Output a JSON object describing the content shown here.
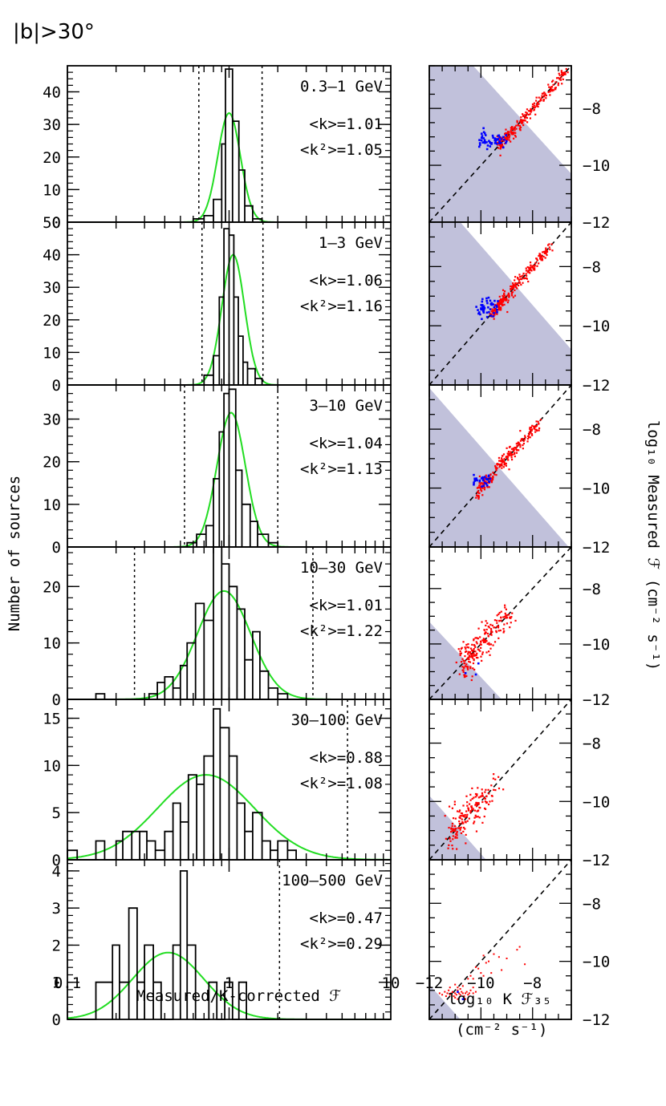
{
  "figure": {
    "title": "|b|>30°",
    "ylabel_left": "Number of sources",
    "xlabel_left": "Measured/K-corrected ℱ",
    "xlabel_right": "log₁₀ K ℱ₃₅",
    "xlabel_right_units": "(cm⁻² s⁻¹)",
    "ylabel_right": "log₁₀ Measured ℱ (cm⁻² s⁻¹)",
    "colors": {
      "fit": "#22dd22",
      "histogram": "#000000",
      "shade": "#c1c1db",
      "points_red": "#ff0000",
      "points_blue": "#0000ff"
    }
  },
  "chart_data": [
    {
      "type": "histogram",
      "panel": "hist-1",
      "band": "0.3–1 GeV",
      "stats": {
        "k": "<k>=1.01",
        "k2": "<k²>=1.05"
      },
      "xscale": "log",
      "xlim": [
        0.1,
        10
      ],
      "ylim": [
        0,
        48
      ],
      "yticks": [
        0,
        10,
        20,
        30,
        40
      ],
      "ytick_labels": [
        "0",
        "10",
        "20",
        "30",
        "40"
      ],
      "dashed_lines_x": [
        0.65,
        1.6
      ],
      "fit": {
        "amplitude": 33.5,
        "center": 1.0,
        "sigma_log10": 0.07
      },
      "bins": [
        [
          0.6,
          0.7,
          1
        ],
        [
          0.7,
          0.8,
          2
        ],
        [
          0.8,
          0.9,
          7
        ],
        [
          0.9,
          0.95,
          24
        ],
        [
          0.95,
          1.05,
          47
        ],
        [
          1.05,
          1.15,
          31
        ],
        [
          1.15,
          1.25,
          16
        ],
        [
          1.25,
          1.4,
          5
        ],
        [
          1.4,
          1.6,
          1
        ]
      ]
    },
    {
      "type": "histogram",
      "panel": "hist-2",
      "band": "1–3 GeV",
      "stats": {
        "k": "<k>=1.06",
        "k2": "<k²>=1.16"
      },
      "xscale": "log",
      "xlim": [
        0.1,
        10
      ],
      "ylim": [
        0,
        50
      ],
      "yticks": [
        0,
        10,
        20,
        30,
        40,
        50
      ],
      "ytick_labels": [
        "0",
        "10",
        "20",
        "30",
        "40",
        "50"
      ],
      "dashed_lines_x": [
        0.68,
        1.62
      ],
      "fit": {
        "amplitude": 40,
        "center": 1.06,
        "sigma_log10": 0.07
      },
      "bins": [
        [
          0.7,
          0.8,
          3
        ],
        [
          0.8,
          0.87,
          9
        ],
        [
          0.87,
          0.93,
          27
        ],
        [
          0.93,
          1.0,
          48
        ],
        [
          1.0,
          1.07,
          46
        ],
        [
          1.07,
          1.14,
          27
        ],
        [
          1.14,
          1.22,
          15
        ],
        [
          1.22,
          1.3,
          7
        ],
        [
          1.3,
          1.45,
          5
        ],
        [
          1.45,
          1.6,
          2
        ]
      ]
    },
    {
      "type": "histogram",
      "panel": "hist-3",
      "band": "3–10 GeV",
      "stats": {
        "k": "<k>=1.04",
        "k2": "<k²>=1.13"
      },
      "xscale": "log",
      "xlim": [
        0.1,
        10
      ],
      "ylim": [
        0,
        38
      ],
      "yticks": [
        0,
        10,
        20,
        30
      ],
      "ytick_labels": [
        "0",
        "10",
        "20",
        "30"
      ],
      "dashed_lines_x": [
        0.53,
        2.0
      ],
      "fit": {
        "amplitude": 31.5,
        "center": 1.03,
        "sigma_log10": 0.088
      },
      "bins": [
        [
          0.55,
          0.63,
          1
        ],
        [
          0.63,
          0.72,
          3
        ],
        [
          0.72,
          0.8,
          5
        ],
        [
          0.8,
          0.87,
          16
        ],
        [
          0.87,
          0.93,
          27
        ],
        [
          0.93,
          1.0,
          36
        ],
        [
          1.0,
          1.1,
          37
        ],
        [
          1.1,
          1.2,
          18
        ],
        [
          1.2,
          1.35,
          10
        ],
        [
          1.35,
          1.5,
          6
        ],
        [
          1.5,
          1.75,
          3
        ],
        [
          1.75,
          2.0,
          1
        ]
      ]
    },
    {
      "type": "histogram",
      "panel": "hist-4",
      "band": "10–30 GeV",
      "stats": {
        "k": "<k>=1.01",
        "k2": "<k²>=1.22"
      },
      "xscale": "log",
      "xlim": [
        0.1,
        10
      ],
      "ylim": [
        0,
        27
      ],
      "yticks": [
        0,
        10,
        20
      ],
      "ytick_labels": [
        "0",
        "10",
        "20"
      ],
      "dashed_lines_x": [
        0.26,
        3.3
      ],
      "fit": {
        "amplitude": 19.2,
        "center": 0.93,
        "sigma_log10": 0.165
      },
      "bins": [
        [
          0.15,
          0.17,
          1
        ],
        [
          0.32,
          0.36,
          1
        ],
        [
          0.36,
          0.4,
          3
        ],
        [
          0.4,
          0.45,
          4
        ],
        [
          0.45,
          0.5,
          2
        ],
        [
          0.5,
          0.55,
          6
        ],
        [
          0.55,
          0.62,
          10
        ],
        [
          0.62,
          0.7,
          17
        ],
        [
          0.7,
          0.8,
          14
        ],
        [
          0.8,
          0.9,
          27
        ],
        [
          0.9,
          1.0,
          24
        ],
        [
          1.0,
          1.12,
          20
        ],
        [
          1.12,
          1.25,
          16
        ],
        [
          1.25,
          1.4,
          7
        ],
        [
          1.4,
          1.55,
          12
        ],
        [
          1.55,
          1.75,
          5
        ],
        [
          1.75,
          2.0,
          2
        ],
        [
          2.0,
          2.3,
          1
        ]
      ]
    },
    {
      "type": "histogram",
      "panel": "hist-5",
      "band": "30–100 GeV",
      "stats": {
        "k": "<k>=0.88",
        "k2": "<k²>=1.08"
      },
      "xscale": "log",
      "xlim": [
        0.1,
        10
      ],
      "ylim": [
        0,
        17
      ],
      "yticks": [
        0,
        5,
        10,
        15
      ],
      "ytick_labels": [
        "0",
        "5",
        "10",
        "15"
      ],
      "dashed_lines_x": [
        5.4
      ],
      "fit": {
        "amplitude": 9,
        "center": 0.72,
        "sigma_log10": 0.3
      },
      "bins": [
        [
          0.1,
          0.115,
          1
        ],
        [
          0.15,
          0.17,
          2
        ],
        [
          0.2,
          0.22,
          2
        ],
        [
          0.22,
          0.25,
          3
        ],
        [
          0.25,
          0.28,
          3
        ],
        [
          0.28,
          0.31,
          3
        ],
        [
          0.31,
          0.35,
          2
        ],
        [
          0.35,
          0.4,
          1
        ],
        [
          0.4,
          0.45,
          3
        ],
        [
          0.45,
          0.5,
          6
        ],
        [
          0.5,
          0.56,
          4
        ],
        [
          0.56,
          0.63,
          9
        ],
        [
          0.63,
          0.7,
          8
        ],
        [
          0.7,
          0.8,
          11
        ],
        [
          0.8,
          0.88,
          16
        ],
        [
          0.88,
          1.0,
          14
        ],
        [
          1.0,
          1.12,
          11
        ],
        [
          1.12,
          1.25,
          6
        ],
        [
          1.25,
          1.4,
          3
        ],
        [
          1.4,
          1.6,
          5
        ],
        [
          1.6,
          1.8,
          2
        ],
        [
          1.8,
          2.0,
          1
        ],
        [
          2.0,
          2.3,
          2
        ],
        [
          2.3,
          2.6,
          1
        ]
      ]
    },
    {
      "type": "histogram",
      "panel": "hist-6",
      "band": "100–500 GeV",
      "stats": {
        "k": "<k>=0.47",
        "k2": "<k²>=0.29"
      },
      "xscale": "log",
      "xlim": [
        0.1,
        10
      ],
      "ylim": [
        0,
        4.3
      ],
      "yticks": [
        0,
        1,
        2,
        3,
        4
      ],
      "ytick_labels": [
        "0",
        "1",
        "2",
        "3",
        "4"
      ],
      "dashed_lines_x": [
        2.05
      ],
      "fit": {
        "amplitude": 1.8,
        "center": 0.42,
        "sigma_log10": 0.22
      },
      "bins": [
        [
          0.15,
          0.19,
          1
        ],
        [
          0.19,
          0.21,
          2
        ],
        [
          0.21,
          0.24,
          1
        ],
        [
          0.24,
          0.27,
          3
        ],
        [
          0.27,
          0.3,
          1
        ],
        [
          0.3,
          0.34,
          2
        ],
        [
          0.34,
          0.38,
          1
        ],
        [
          0.38,
          0.45,
          0
        ],
        [
          0.45,
          0.5,
          2
        ],
        [
          0.5,
          0.55,
          4
        ],
        [
          0.55,
          0.62,
          2
        ],
        [
          0.62,
          0.75,
          0
        ],
        [
          0.75,
          0.84,
          1
        ],
        [
          0.84,
          0.94,
          0
        ],
        [
          0.94,
          1.05,
          1
        ],
        [
          1.05,
          1.15,
          0
        ],
        [
          1.15,
          1.28,
          1
        ]
      ]
    },
    {
      "type": "scatter",
      "panel": "scatter-1",
      "xlim": [
        -12,
        -6.5
      ],
      "ylim": [
        -12,
        -6.5
      ],
      "xticks": [
        -12,
        -10,
        -8
      ],
      "yticks": [
        -12,
        -10,
        -8
      ],
      "ytick_labels": [
        "−12",
        "−10",
        "−8"
      ],
      "xtick_labels": [
        "−12",
        "−10",
        "−8"
      ],
      "shade": {
        "type": "below-anti-diagonal",
        "sum": -16.8
      },
      "red": {
        "x_range": [
          -9.3,
          -6.7
        ],
        "scatter": 0.08,
        "count": 230
      },
      "blue": {
        "x_range": [
          -10.1,
          -9.0
        ],
        "count": 55,
        "y_offset": 0.15,
        "y_spread": 0.25
      }
    },
    {
      "type": "scatter",
      "panel": "scatter-2",
      "xlim": [
        -12,
        -6.5
      ],
      "ylim": [
        -12,
        -6.5
      ],
      "xticks": [
        -12,
        -10,
        -8
      ],
      "yticks": [
        -12,
        -10,
        -8
      ],
      "ytick_labels": [
        "−12",
        "−10",
        "−8"
      ],
      "xtick_labels": [
        "−12",
        "−10",
        "−8"
      ],
      "shade": {
        "type": "below-anti-diagonal",
        "sum": -17.3
      },
      "red": {
        "x_range": [
          -9.6,
          -7.3
        ],
        "scatter": 0.08,
        "count": 240
      },
      "blue": {
        "x_range": [
          -10.2,
          -9.3
        ],
        "count": 45,
        "y_offset": 0.15,
        "y_spread": 0.2
      }
    },
    {
      "type": "scatter",
      "panel": "scatter-3",
      "xlim": [
        -12,
        -6.5
      ],
      "ylim": [
        -12,
        -6.5
      ],
      "xticks": [
        -12,
        -10,
        -8
      ],
      "yticks": [
        -12,
        -10,
        -8
      ],
      "ytick_labels": [
        "−12",
        "−10",
        "−8"
      ],
      "xtick_labels": [
        "−12",
        "−10",
        "−8"
      ],
      "shade": {
        "type": "below-anti-diagonal",
        "sum": -18.6
      },
      "red": {
        "x_range": [
          -10.1,
          -7.7
        ],
        "scatter": 0.1,
        "count": 220
      },
      "blue": {
        "x_range": [
          -10.3,
          -9.6
        ],
        "count": 30,
        "y_offset": 0.05,
        "y_spread": 0.15
      }
    },
    {
      "type": "scatter",
      "panel": "scatter-4",
      "xlim": [
        -12,
        -6.5
      ],
      "ylim": [
        -12,
        -6.5
      ],
      "xticks": [
        -12,
        -10,
        -8
      ],
      "yticks": [
        -12,
        -10,
        -8
      ],
      "ytick_labels": [
        "−12",
        "−10",
        "−8"
      ],
      "xtick_labels": [
        "−12",
        "−10",
        "−8"
      ],
      "shade": {
        "type": "below-anti-diagonal",
        "sum": -21.2
      },
      "red": {
        "x_range": [
          -10.7,
          -8.9
        ],
        "scatter": 0.25,
        "count": 200
      },
      "blue": {
        "points": [
          [
            -10.6,
            -11.05
          ],
          [
            -10.2,
            -11.1
          ],
          [
            -10.1,
            -10.7
          ]
        ]
      }
    },
    {
      "type": "scatter",
      "panel": "scatter-5",
      "xlim": [
        -12,
        -6.5
      ],
      "ylim": [
        -12,
        -6.5
      ],
      "xticks": [
        -12,
        -10,
        -8
      ],
      "yticks": [
        -12,
        -10,
        -8
      ],
      "ytick_labels": [
        "−12",
        "−10",
        "−8"
      ],
      "xtick_labels": [
        "−12",
        "−10",
        "−8"
      ],
      "shade": {
        "type": "below-anti-diagonal",
        "sum": -21.8
      },
      "red": {
        "x_range": [
          -11.2,
          -9.5
        ],
        "scatter": 0.25,
        "count": 170
      },
      "blue": {
        "points": []
      }
    },
    {
      "type": "scatter",
      "panel": "scatter-6",
      "xlim": [
        -12,
        -6.5
      ],
      "ylim": [
        -12,
        -6.5
      ],
      "xticks": [
        -12,
        -10,
        -8
      ],
      "yticks": [
        -12,
        -10,
        -8
      ],
      "ytick_labels": [
        "−12",
        "−10",
        "−8"
      ],
      "xtick_labels": [
        "−12",
        "−10",
        "−8"
      ],
      "shade": {
        "type": "below-anti-diagonal",
        "sum": -22.8
      },
      "red": {
        "points": [
          [
            -11.6,
            -11.1
          ],
          [
            -11.5,
            -11.15
          ],
          [
            -11.4,
            -11.05
          ],
          [
            -11.35,
            -11.2
          ],
          [
            -11.3,
            -11.1
          ],
          [
            -11.25,
            -11.0
          ],
          [
            -11.2,
            -11.15
          ],
          [
            -11.15,
            -11.1
          ],
          [
            -11.1,
            -11.05
          ],
          [
            -11.05,
            -11.2
          ],
          [
            -11.0,
            -11.1
          ],
          [
            -10.95,
            -11.15
          ],
          [
            -10.9,
            -11.0
          ],
          [
            -10.85,
            -11.1
          ],
          [
            -10.8,
            -11.15
          ],
          [
            -10.75,
            -11.05
          ],
          [
            -10.7,
            -11.1
          ],
          [
            -10.65,
            -11.2
          ],
          [
            -10.6,
            -11.1
          ],
          [
            -10.55,
            -11.05
          ],
          [
            -10.5,
            -11.15
          ],
          [
            -10.45,
            -11.1
          ],
          [
            -10.4,
            -11.0
          ],
          [
            -10.3,
            -11.1
          ],
          [
            -10.2,
            -11.05
          ],
          [
            -11.0,
            -10.8
          ],
          [
            -10.9,
            -10.9
          ],
          [
            -10.7,
            -10.85
          ],
          [
            -10.5,
            -10.6
          ],
          [
            -10.4,
            -10.5
          ],
          [
            -10.2,
            -10.2
          ],
          [
            -10.1,
            -10.25
          ],
          [
            -9.9,
            -9.8
          ],
          [
            -9.8,
            -10.05
          ],
          [
            -9.7,
            -10.0
          ],
          [
            -9.5,
            -9.75
          ],
          [
            -9.3,
            -9.85
          ],
          [
            -9.2,
            -10.3
          ],
          [
            -8.6,
            -9.6
          ],
          [
            -8.5,
            -9.5
          ],
          [
            -8.3,
            -10.1
          ],
          [
            -9.6,
            -10.4
          ],
          [
            -10.3,
            -10.6
          ],
          [
            -10.9,
            -11.3
          ],
          [
            -11.0,
            -11.25
          ],
          [
            -10.6,
            -11.3
          ],
          [
            -11.2,
            -10.9
          ],
          [
            -10.8,
            -10.95
          ],
          [
            -10.3,
            -10.9
          ],
          [
            -9.0,
            -9.9
          ],
          [
            -9.9,
            -10.5
          ],
          [
            -10.0,
            -10.4
          ]
        ]
      },
      "blue": {
        "points": [
          [
            -10.7,
            -11.3
          ],
          [
            -10.9,
            -11.05
          ]
        ]
      }
    }
  ]
}
